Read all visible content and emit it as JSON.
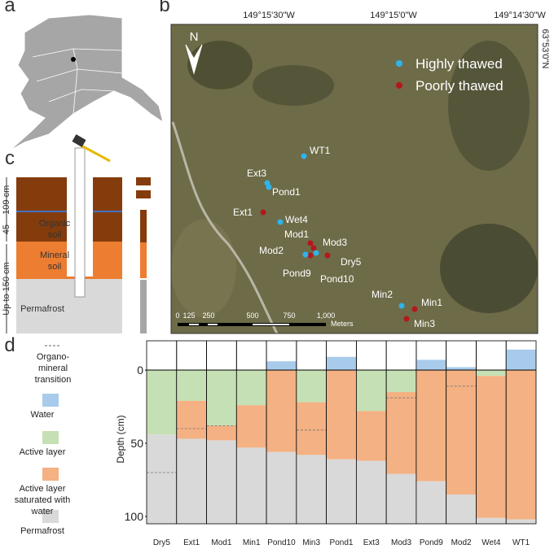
{
  "panel_labels": [
    "a",
    "b",
    "c",
    "d"
  ],
  "map": {
    "longitude_labels": [
      "149°15'30\"W",
      "149°15'0\"W",
      "149°14'30\"W"
    ],
    "latitude_label": "63°53'0\"N",
    "north_label": "N",
    "legend": [
      {
        "label": "Highly thawed",
        "color": "#2db4ea"
      },
      {
        "label": "Poorly thawed",
        "color": "#b5171c"
      }
    ],
    "sites": [
      {
        "name": "WT1",
        "color": "#2db4ea"
      },
      {
        "name": "Ext3",
        "color": "#2db4ea"
      },
      {
        "name": "Pond1",
        "color": "#2db4ea"
      },
      {
        "name": "Ext1",
        "color": "#b5171c"
      },
      {
        "name": "Wet4",
        "color": "#2db4ea"
      },
      {
        "name": "Mod1",
        "color": "#b5171c"
      },
      {
        "name": "Mod3",
        "color": "#b5171c"
      },
      {
        "name": "Mod2",
        "color": "#b5171c"
      },
      {
        "name": "Dry5",
        "color": "#b5171c"
      },
      {
        "name": "Pond9",
        "color": "#2db4ea"
      },
      {
        "name": "Pond10",
        "color": "#2db4ea"
      },
      {
        "name": "Min2",
        "color": "#2db4ea"
      },
      {
        "name": "Min1",
        "color": "#b5171c"
      },
      {
        "name": "Min3",
        "color": "#b5171c"
      }
    ],
    "scale_labels": [
      "0",
      "125",
      "250",
      "500",
      "750",
      "1,000"
    ],
    "scale_unit": "Meters"
  },
  "soil_profile": {
    "organic_depth": "45 – 109 cm",
    "organic": "Organic soil",
    "mineral": "Mineral soil",
    "total_depth": "Up to 150 cm",
    "permafrost": "Permafrost"
  },
  "chart_data": {
    "type": "stacked-bar",
    "y_label": "Depth (cm)",
    "y_reversed": true,
    "categories": [
      "Dry5",
      "Ext1",
      "Mod1",
      "Min1",
      "Pond10",
      "Min3",
      "Pond1",
      "Ext3",
      "Mod3",
      "Pond9",
      "Mod2",
      "Wet4",
      "WT1"
    ],
    "series": [
      {
        "name": "Water",
        "color": "#a8cbeb",
        "values": [
          0,
          0,
          0,
          0,
          6,
          0,
          9,
          0,
          0,
          7,
          2,
          0,
          14
        ]
      },
      {
        "name": "Active layer",
        "color": "#c5e0b4",
        "values": [
          44,
          21,
          38,
          24,
          0,
          22,
          0,
          28,
          15,
          0,
          0,
          4,
          0
        ]
      },
      {
        "name": "Active layer saturated with water",
        "color": "#f4b183",
        "values": [
          0,
          26,
          10,
          29,
          56,
          36,
          61,
          34,
          56,
          76,
          85,
          97,
          102
        ]
      }
    ],
    "permafrost": {
      "name": "Permafrost",
      "color": "#d9d9d9"
    },
    "transition": {
      "name": "Organo-mineral transition",
      "values": [
        70,
        40,
        38,
        null,
        null,
        41,
        null,
        null,
        19,
        null,
        11,
        null,
        null
      ]
    },
    "ylim": [
      -20,
      105
    ],
    "yticks": [
      0,
      50,
      100
    ]
  }
}
